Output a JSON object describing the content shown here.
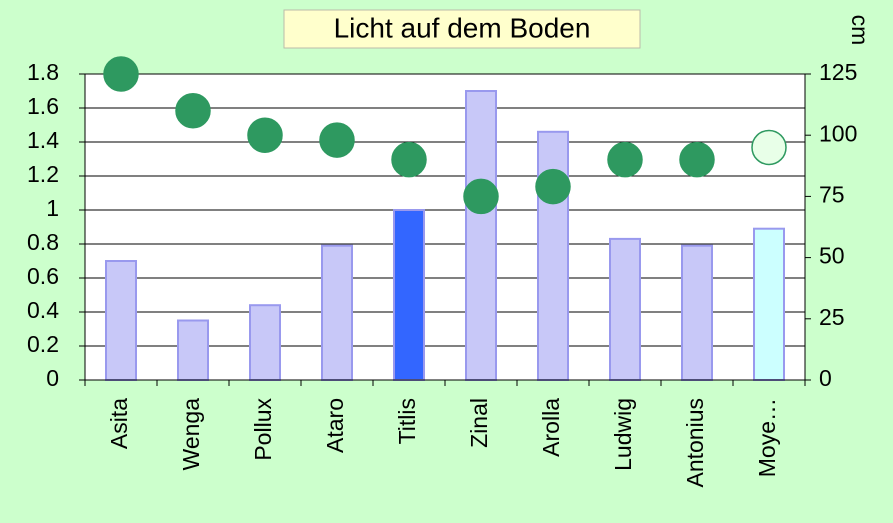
{
  "chart_data": {
    "type": "bar",
    "title": "Licht auf dem Boden",
    "y2_label": "cm",
    "categories": [
      "Asita",
      "Wenga",
      "Pollux",
      "Ataro",
      "Titlis",
      "Zinal",
      "Arolla",
      "Ludwig",
      "Antonius",
      "Moye…"
    ],
    "series": [
      {
        "type": "bar",
        "axis": "y",
        "colors": [
          "#c8c8f8",
          "#c8c8f8",
          "#c8c8f8",
          "#c8c8f8",
          "#3366ff",
          "#c8c8f8",
          "#c8c8f8",
          "#c8c8f8",
          "#c8c8f8",
          "#ccffff"
        ],
        "values": [
          0.7,
          0.35,
          0.44,
          0.79,
          1.0,
          1.7,
          1.46,
          0.83,
          0.79,
          0.89
        ]
      },
      {
        "type": "scatter",
        "axis": "y2",
        "colors": [
          "#2e9960",
          "#2e9960",
          "#2e9960",
          "#2e9960",
          "#2e9960",
          "#2e9960",
          "#2e9960",
          "#2e9960",
          "#2e9960",
          "#e8ffe8"
        ],
        "values": [
          125,
          110,
          100,
          98,
          90,
          75,
          79,
          90,
          90,
          95
        ]
      }
    ],
    "ylim": [
      0,
      1.8
    ],
    "yticks": [
      0,
      0.2,
      0.4,
      0.6,
      0.8,
      1,
      1.2,
      1.4,
      1.6,
      1.8
    ],
    "y2lim": [
      0,
      125
    ],
    "y2ticks": [
      0,
      25,
      50,
      75,
      100,
      125
    ],
    "grid": true
  }
}
